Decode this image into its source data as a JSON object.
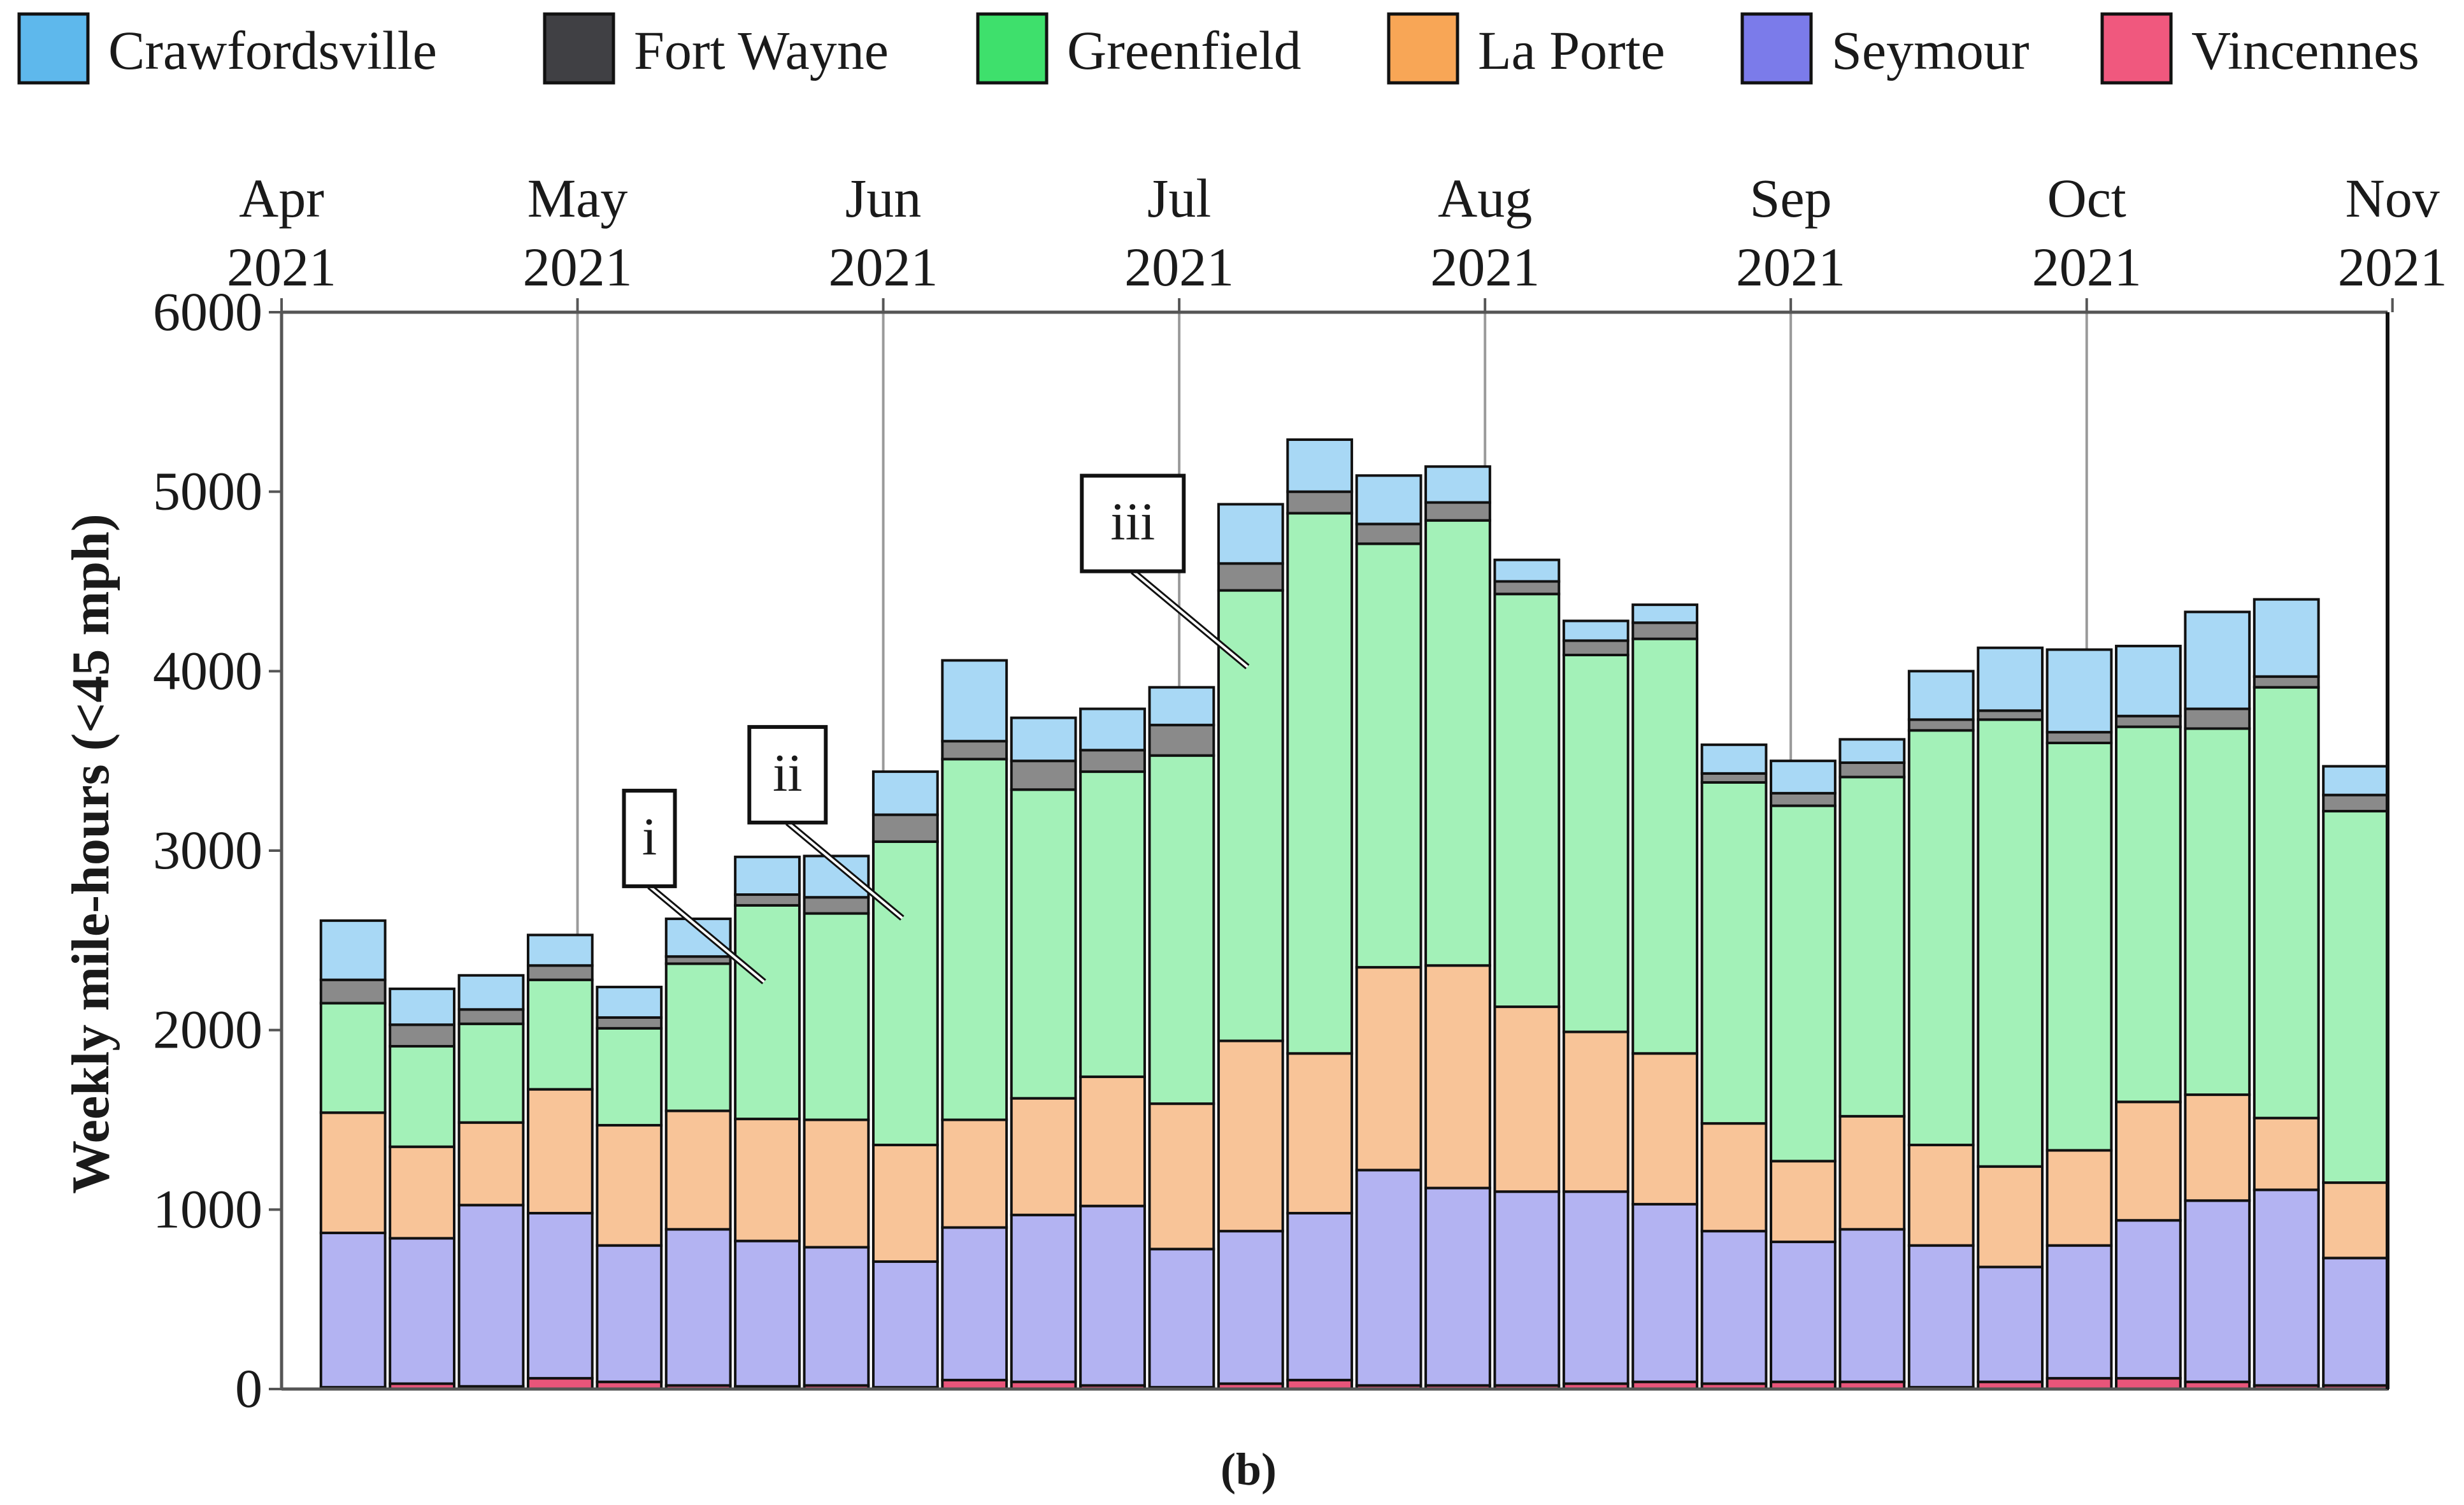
{
  "chart_data": {
    "type": "bar",
    "stacked": true,
    "caption": "(b)",
    "ylabel": "Weekly mile-hours (<45 mph)",
    "ylim": [
      0,
      6000
    ],
    "yticks": [
      "0",
      "1000",
      "2000",
      "3000",
      "4000",
      "5000",
      "6000"
    ],
    "xrange_weeks": [
      0,
      30.5
    ],
    "month_ticks": [
      {
        "month": "Apr",
        "year": "2021",
        "week": 0
      },
      {
        "month": "May",
        "year": "2021",
        "week": 4.286
      },
      {
        "month": "Jun",
        "year": "2021",
        "week": 8.714
      },
      {
        "month": "Jul",
        "year": "2021",
        "week": 13.0
      },
      {
        "month": "Aug",
        "year": "2021",
        "week": 17.429
      },
      {
        "month": "Sep",
        "year": "2021",
        "week": 21.857
      },
      {
        "month": "Oct",
        "year": "2021",
        "week": 26.143
      },
      {
        "month": "Nov",
        "year": "2021",
        "week": 30.571
      }
    ],
    "bar_week_offsets": [
      1,
      2,
      3,
      4,
      5,
      6,
      7,
      8,
      9,
      10,
      11,
      12,
      13,
      14,
      15,
      16,
      17,
      18,
      19,
      20,
      21,
      22,
      23,
      24,
      25,
      26,
      27,
      28,
      29,
      30
    ],
    "series": [
      {
        "name": "Vincennes",
        "color": "#e8557a",
        "values": [
          10,
          30,
          15,
          60,
          40,
          20,
          15,
          20,
          10,
          50,
          40,
          20,
          10,
          30,
          50,
          20,
          20,
          20,
          30,
          40,
          30,
          40,
          40,
          10,
          40,
          60,
          60,
          40,
          20,
          20
        ]
      },
      {
        "name": "Seymour",
        "color": "#b3b3f2",
        "values": [
          860,
          810,
          1010,
          920,
          760,
          870,
          810,
          770,
          700,
          850,
          930,
          1000,
          770,
          850,
          930,
          1200,
          1100,
          1080,
          1070,
          990,
          850,
          780,
          850,
          790,
          640,
          740,
          880,
          1010,
          1090,
          710
        ]
      },
      {
        "name": "La Porte",
        "color": "#f8c498",
        "values": [
          670,
          510,
          460,
          690,
          670,
          660,
          680,
          710,
          650,
          600,
          650,
          720,
          810,
          1060,
          890,
          1130,
          1240,
          1030,
          890,
          840,
          600,
          450,
          630,
          560,
          560,
          530,
          660,
          590,
          400,
          420
        ]
      },
      {
        "name": "Greenfield",
        "color": "#a3f1b8",
        "values": [
          610,
          560,
          550,
          610,
          540,
          820,
          1190,
          1150,
          1690,
          2010,
          1720,
          1700,
          1940,
          2510,
          3010,
          2360,
          2480,
          2300,
          2100,
          2310,
          1900,
          1980,
          1890,
          2310,
          2490,
          2270,
          2090,
          2040,
          2400,
          2070
        ]
      },
      {
        "name": "Fort Wayne",
        "color": "#8a8a8a",
        "values": [
          130,
          120,
          80,
          80,
          60,
          40,
          60,
          90,
          150,
          100,
          160,
          120,
          170,
          150,
          120,
          110,
          100,
          70,
          80,
          90,
          50,
          70,
          80,
          60,
          50,
          60,
          60,
          110,
          60,
          90
        ]
      },
      {
        "name": "Crawfordsville",
        "color": "#a8d8f5",
        "values": [
          330,
          200,
          190,
          170,
          170,
          210,
          210,
          230,
          240,
          450,
          240,
          230,
          210,
          330,
          290,
          270,
          200,
          120,
          110,
          100,
          160,
          180,
          130,
          270,
          350,
          460,
          390,
          540,
          430,
          160
        ]
      }
    ],
    "legend": [
      {
        "name": "Crawfordsville",
        "color": "#5eb8ec"
      },
      {
        "name": "Fort Wayne",
        "color": "#404044"
      },
      {
        "name": "Greenfield",
        "color": "#3ee06c"
      },
      {
        "name": "La Porte",
        "color": "#f8a656"
      },
      {
        "name": "Seymour",
        "color": "#7b7bea"
      },
      {
        "name": "Vincennes",
        "color": "#f0587e"
      }
    ],
    "annotations": [
      {
        "label": "i",
        "bar_index": 6
      },
      {
        "label": "ii",
        "bar_index": 8
      },
      {
        "label": "iii",
        "bar_index": 13
      }
    ]
  }
}
